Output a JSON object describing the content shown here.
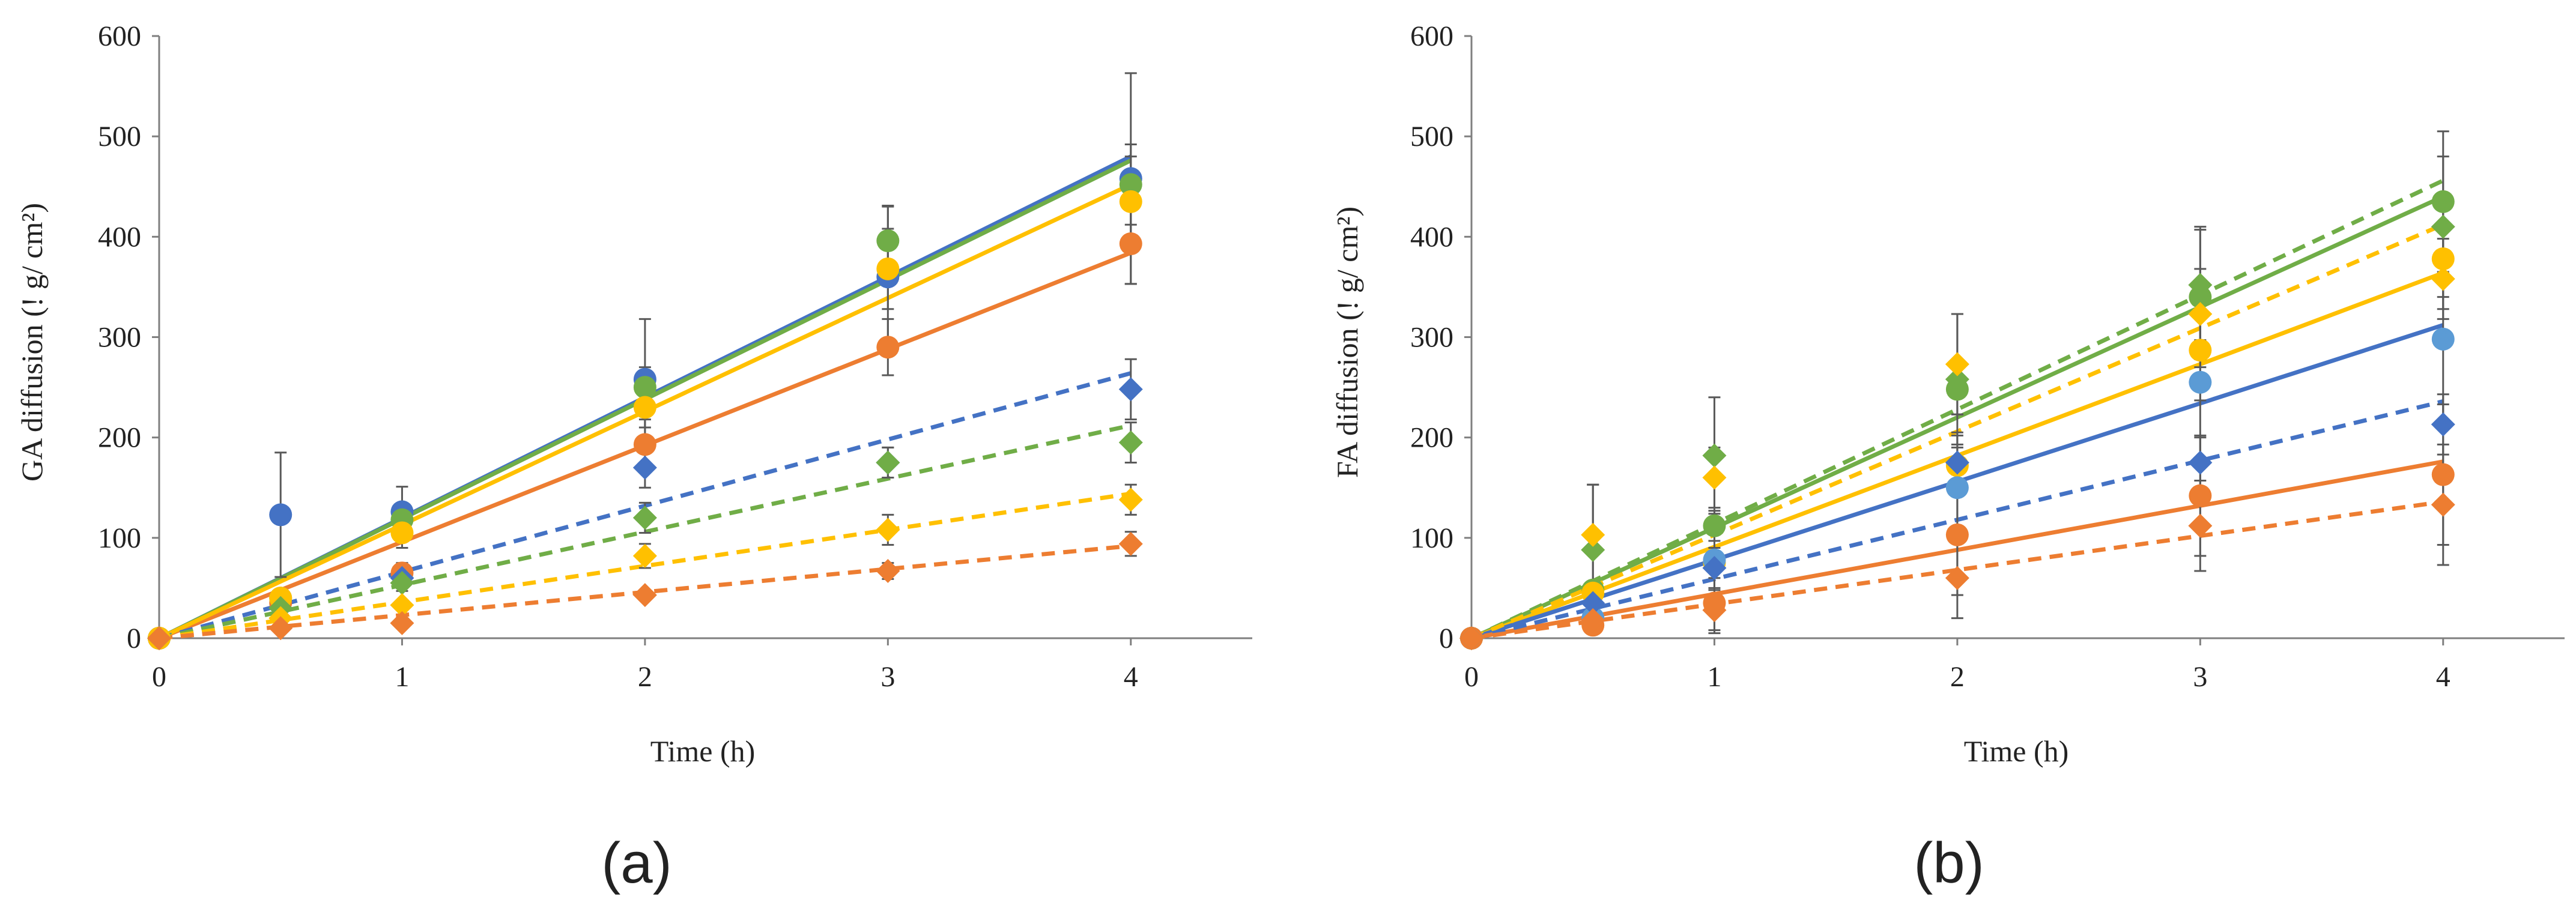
{
  "colors": {
    "blue": "#4472C4",
    "orange": "#ED7D31",
    "green": "#70AD47",
    "yellow": "#FFC000",
    "lightblue": "#5B9BD5"
  },
  "chart_data": [
    {
      "type": "scatter",
      "caption": "(a)",
      "xlabel": "Time (h)",
      "ylabel": "GA diffusion (! g/ cm²)",
      "xlim": [
        0,
        4.5
      ],
      "ylim": [
        0,
        600
      ],
      "xticks": [
        0,
        1,
        2,
        3,
        4
      ],
      "yticks": [
        0,
        100,
        200,
        300,
        400,
        500,
        600
      ],
      "x": [
        0,
        0.5,
        1,
        2,
        3,
        4
      ],
      "series": [
        {
          "name": "blue circle",
          "color": "#4472C4",
          "marker": "circle",
          "values": [
            0,
            123,
            126,
            258,
            360,
            458
          ],
          "err": [
            0,
            62,
            25,
            60,
            70,
            105
          ],
          "trend": "solid",
          "slope": 120
        },
        {
          "name": "orange circle",
          "color": "#ED7D31",
          "marker": "circle",
          "values": [
            0,
            35,
            65,
            193,
            290,
            393
          ],
          "err": [
            0,
            0,
            10,
            25,
            28,
            40
          ],
          "trend": "solid",
          "slope": 96
        },
        {
          "name": "green circle",
          "color": "#70AD47",
          "marker": "circle",
          "values": [
            0,
            40,
            118,
            250,
            396,
            452
          ],
          "err": [
            0,
            0,
            15,
            20,
            35,
            40
          ],
          "trend": "solid",
          "slope": 119
        },
        {
          "name": "yellow circle",
          "color": "#FFC000",
          "marker": "circle",
          "values": [
            0,
            40,
            105,
            230,
            368,
            435
          ],
          "err": [
            0,
            0,
            15,
            20,
            40,
            45
          ],
          "trend": "solid",
          "slope": 113
        },
        {
          "name": "blue diamond",
          "color": "#4472C4",
          "marker": "diamond",
          "values": [
            0,
            30,
            60,
            170,
            175,
            248
          ],
          "err": [
            0,
            0,
            8,
            20,
            15,
            30
          ],
          "trend": "dashed",
          "slope": 66
        },
        {
          "name": "green diamond",
          "color": "#70AD47",
          "marker": "diamond",
          "values": [
            0,
            30,
            55,
            120,
            175,
            195
          ],
          "err": [
            0,
            0,
            8,
            15,
            15,
            20
          ],
          "trend": "dashed",
          "slope": 53
        },
        {
          "name": "yellow diamond",
          "color": "#FFC000",
          "marker": "diamond",
          "values": [
            0,
            20,
            33,
            82,
            108,
            138
          ],
          "err": [
            0,
            0,
            5,
            12,
            15,
            15
          ],
          "trend": "dashed",
          "slope": 36
        },
        {
          "name": "orange diamond",
          "color": "#ED7D31",
          "marker": "diamond",
          "values": [
            0,
            10,
            15,
            43,
            67,
            94
          ],
          "err": [
            0,
            0,
            5,
            5,
            8,
            12
          ],
          "trend": "dashed",
          "slope": 23
        }
      ]
    },
    {
      "type": "scatter",
      "caption": "(b)",
      "xlabel": "Time (h)",
      "ylabel": "FA diffusion (! g/ cm²)",
      "xlim": [
        0,
        4.5
      ],
      "ylim": [
        0,
        600
      ],
      "xticks": [
        0,
        1,
        2,
        3,
        4
      ],
      "yticks": [
        0,
        100,
        200,
        300,
        400,
        500,
        600
      ],
      "x": [
        0,
        0.5,
        1,
        2,
        3,
        4
      ],
      "series": [
        {
          "name": "green circle",
          "color": "#70AD47",
          "marker": "circle",
          "values": [
            0,
            48,
            112,
            248,
            340,
            435
          ],
          "err": [
            0,
            0,
            15,
            25,
            70,
            70
          ],
          "trend": "solid",
          "slope": 110
        },
        {
          "name": "yellow circle",
          "color": "#FFC000",
          "marker": "circle",
          "values": [
            0,
            45,
            75,
            172,
            287,
            378
          ],
          "err": [
            0,
            0,
            15,
            30,
            50,
            50
          ],
          "trend": "solid",
          "slope": 91
        },
        {
          "name": "light blue circle",
          "color": "#5B9BD5",
          "marker": "circle",
          "values": [
            0,
            20,
            78,
            150,
            255,
            298
          ],
          "err": [
            0,
            0,
            40,
            40,
            80,
            80
          ],
          "trend": "solid",
          "slope": 78,
          "trend_color": "#4472C4"
        },
        {
          "name": "orange circle",
          "color": "#ED7D31",
          "marker": "circle",
          "values": [
            0,
            13,
            35,
            103,
            142,
            163
          ],
          "err": [
            0,
            0,
            30,
            60,
            60,
            70
          ],
          "trend": "solid",
          "slope": 44
        },
        {
          "name": "green diamond",
          "color": "#70AD47",
          "marker": "diamond",
          "values": [
            0,
            88,
            182,
            258,
            352,
            410
          ],
          "err": [
            0,
            65,
            58,
            65,
            55,
            70
          ],
          "trend": "dashed",
          "slope": 114
        },
        {
          "name": "yellow diamond",
          "color": "#FFC000",
          "marker": "diamond",
          "values": [
            0,
            103,
            160,
            273,
            323,
            358
          ],
          "err": [
            0,
            50,
            30,
            50,
            45,
            40
          ],
          "trend": "dashed",
          "slope": 103
        },
        {
          "name": "blue diamond",
          "color": "#4472C4",
          "marker": "diamond",
          "values": [
            0,
            35,
            70,
            175,
            175,
            213
          ],
          "err": [
            0,
            0,
            20,
            30,
            25,
            30
          ],
          "trend": "dashed",
          "slope": 59
        },
        {
          "name": "orange diamond",
          "color": "#ED7D31",
          "marker": "diamond",
          "values": [
            0,
            18,
            28,
            60,
            112,
            133
          ],
          "err": [
            0,
            0,
            20,
            40,
            45,
            60
          ],
          "trend": "dashed",
          "slope": 34
        }
      ]
    }
  ]
}
